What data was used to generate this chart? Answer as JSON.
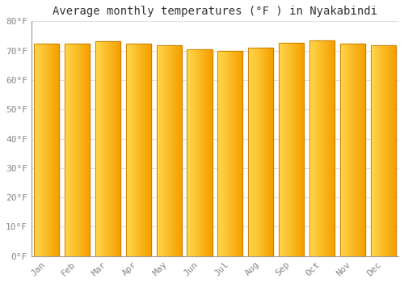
{
  "title": "Average monthly temperatures (°F ) in Nyakabindi",
  "months": [
    "Jan",
    "Feb",
    "Mar",
    "Apr",
    "May",
    "Jun",
    "Jul",
    "Aug",
    "Sep",
    "Oct",
    "Nov",
    "Dec"
  ],
  "values": [
    72.3,
    72.5,
    73.2,
    72.3,
    71.8,
    70.5,
    69.8,
    71.1,
    72.7,
    73.4,
    72.5,
    71.8
  ],
  "bar_color_left": "#FFD84D",
  "bar_color_right": "#F5A000",
  "bar_edge_color": "#C87800",
  "ylim": [
    0,
    80
  ],
  "yticks": [
    0,
    10,
    20,
    30,
    40,
    50,
    60,
    70,
    80
  ],
  "ytick_labels": [
    "0°F",
    "10°F",
    "20°F",
    "30°F",
    "40°F",
    "50°F",
    "60°F",
    "70°F",
    "80°F"
  ],
  "background_color": "#FFFFFF",
  "plot_bg_color": "#FFFFFF",
  "grid_color": "#E0E0E0",
  "title_fontsize": 10,
  "tick_fontsize": 8,
  "tick_color": "#888888",
  "font_family": "monospace",
  "bar_width": 0.82
}
